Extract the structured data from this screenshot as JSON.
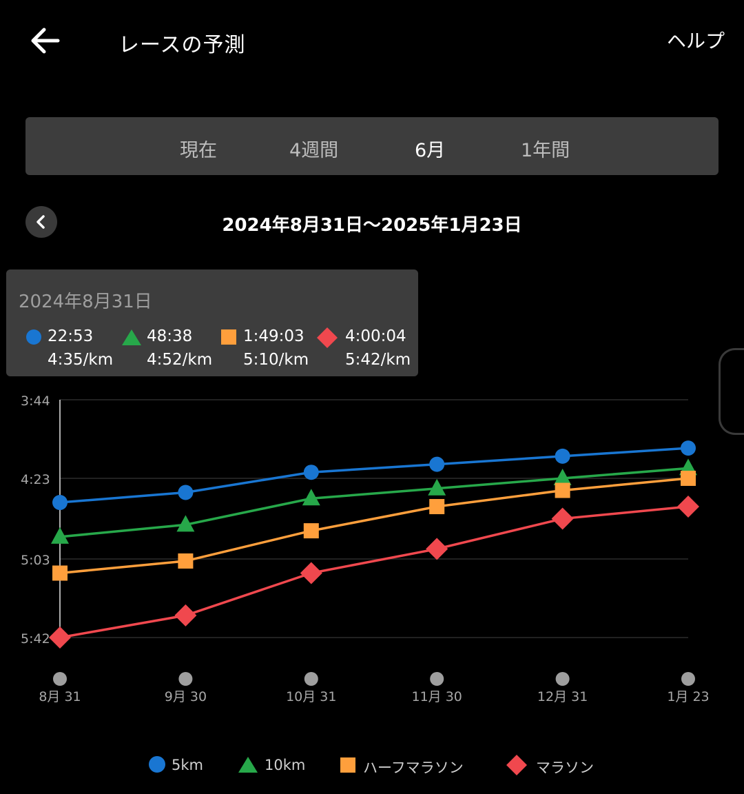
{
  "header": {
    "title": "レースの予測",
    "help": "ヘルプ",
    "back_icon": "arrow-left-icon"
  },
  "tabs": [
    {
      "label": "現在",
      "selected": false
    },
    {
      "label": "4週間",
      "selected": false
    },
    {
      "label": "6月",
      "selected": true
    },
    {
      "label": "1年間",
      "selected": false
    }
  ],
  "date_range": "2024年8月31日～2025年1月23日",
  "tooltip": {
    "date": "2024年8月31日",
    "items": [
      {
        "time": "22:53",
        "pace": "4:35/km",
        "color": "#1976d2",
        "shape": "circle"
      },
      {
        "time": "48:38",
        "pace": "4:52/km",
        "color": "#27a84a",
        "shape": "triangle"
      },
      {
        "time": "1:49:03",
        "pace": "5:10/km",
        "color": "#ff9f3c",
        "shape": "square"
      },
      {
        "time": "4:00:04",
        "pace": "5:42/km",
        "color": "#f0484e",
        "shape": "diamond"
      }
    ]
  },
  "chart_data": {
    "type": "line",
    "categories": [
      "8月 31",
      "9月 30",
      "10月 31",
      "11月 30",
      "12月 31",
      "1月 23"
    ],
    "y_ticks": [
      "3:44",
      "4:23",
      "5:03",
      "5:42"
    ],
    "y_unit": "min/km",
    "y_inverted": true,
    "ylim": [
      3.7333,
      5.7
    ],
    "series": [
      {
        "name": "5km",
        "color": "#1976d2",
        "shape": "circle",
        "values": [
          4.583,
          4.5,
          4.333,
          4.267,
          4.2,
          4.133
        ]
      },
      {
        "name": "10km",
        "color": "#27a84a",
        "shape": "triangle",
        "values": [
          4.867,
          4.767,
          4.55,
          4.467,
          4.383,
          4.3
        ]
      },
      {
        "name": "ハーフマラソン",
        "color": "#ff9f3c",
        "shape": "square",
        "values": [
          5.167,
          5.067,
          4.817,
          4.617,
          4.483,
          4.383
        ]
      },
      {
        "name": "マラソン",
        "color": "#f0484e",
        "shape": "diamond",
        "values": [
          5.7,
          5.517,
          5.167,
          4.967,
          4.717,
          4.617
        ]
      }
    ],
    "grid": true
  }
}
